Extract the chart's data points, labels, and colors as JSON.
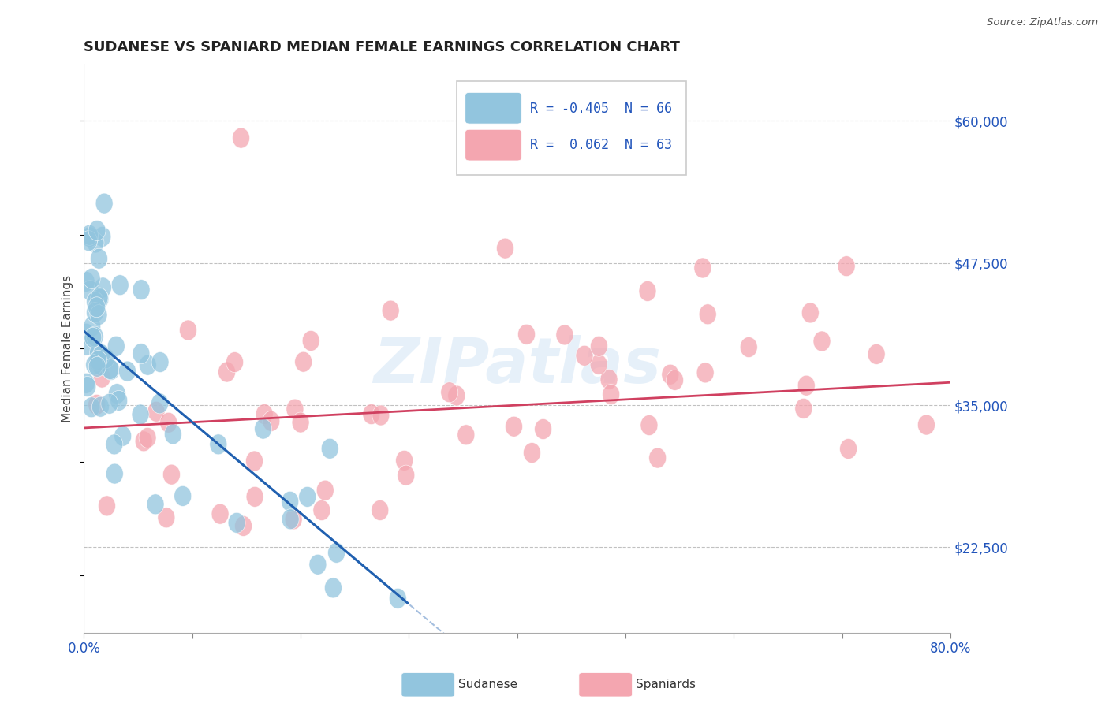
{
  "title": "SUDANESE VS SPANIARD MEDIAN FEMALE EARNINGS CORRELATION CHART",
  "source": "Source: ZipAtlas.com",
  "ylabel": "Median Female Earnings",
  "xlim": [
    0.0,
    0.8
  ],
  "ylim": [
    15000,
    65000
  ],
  "yticks": [
    22500,
    35000,
    47500,
    60000
  ],
  "ytick_labels": [
    "$22,500",
    "$35,000",
    "$47,500",
    "$60,000"
  ],
  "xtick_labels": [
    "0.0%",
    "",
    "",
    "",
    "",
    "",
    "",
    "",
    "80.0%"
  ],
  "blue_color": "#92c5de",
  "pink_color": "#f4a6b0",
  "blue_line_color": "#2060b0",
  "pink_line_color": "#d04060",
  "text_color": "#2255bb",
  "watermark": "ZIPatlas",
  "legend_blue_r": "R = -0.405",
  "legend_blue_n": "N = 66",
  "legend_pink_r": "R =  0.062",
  "legend_pink_n": "N = 63"
}
